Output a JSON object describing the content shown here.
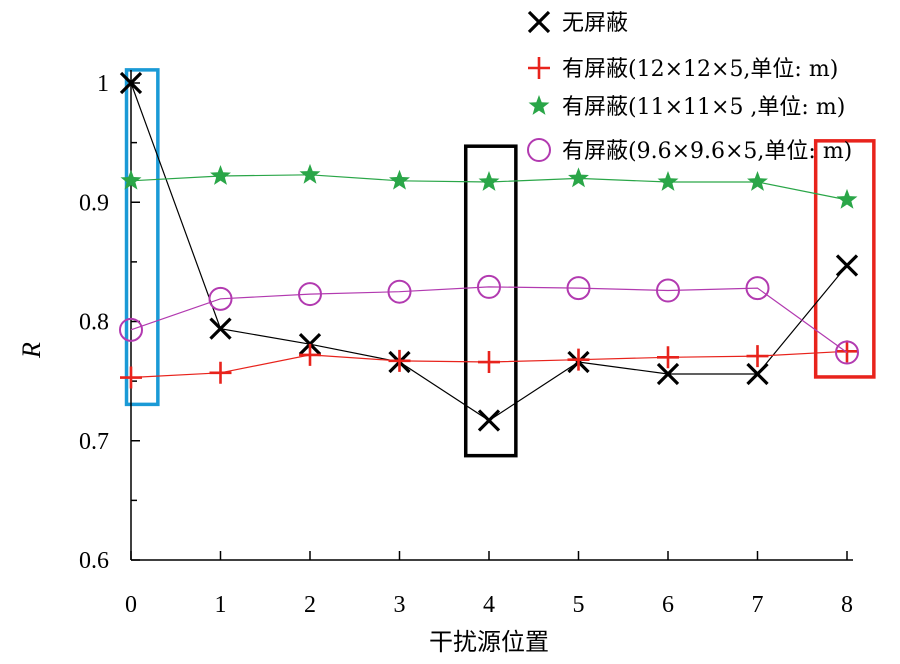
{
  "chart_data": {
    "type": "line",
    "xlabel": "干扰源位置",
    "ylabel": "R",
    "x": [
      0,
      1,
      2,
      3,
      4,
      5,
      6,
      7,
      8
    ],
    "xlim": [
      0,
      8
    ],
    "ylim": [
      0.6,
      1.0
    ],
    "x_ticks": [
      "0",
      "1",
      "2",
      "3",
      "4",
      "5",
      "6",
      "7",
      "8"
    ],
    "y_ticks": [
      "0.6",
      "0.7",
      "0.8",
      "0.9",
      "1"
    ],
    "y_tick_values": [
      0.6,
      0.7,
      0.8,
      0.9,
      1.0
    ],
    "grid": false,
    "legend_position": "top-right",
    "series": [
      {
        "name": "无屏蔽",
        "marker": "x",
        "color": "#000000",
        "values": [
          1.0,
          0.794,
          0.781,
          0.766,
          0.717,
          0.766,
          0.756,
          0.756,
          0.847
        ]
      },
      {
        "name": "有屏蔽(12×12×5,单位: m)",
        "marker": "plus",
        "color": "#e8231c",
        "values": [
          0.753,
          0.757,
          0.772,
          0.767,
          0.766,
          0.768,
          0.77,
          0.771,
          0.775
        ]
      },
      {
        "name": "有屏蔽(11×11×5 ,单位: m)",
        "marker": "star",
        "color": "#2aa648",
        "values": [
          0.918,
          0.922,
          0.923,
          0.918,
          0.917,
          0.92,
          0.917,
          0.917,
          0.902
        ]
      },
      {
        "name": "有屏蔽(9.6×9.6×5,单位: m)",
        "marker": "circle",
        "color": "#b23ab0",
        "values": [
          0.793,
          0.819,
          0.823,
          0.825,
          0.829,
          0.828,
          0.826,
          0.828,
          0.774
        ]
      }
    ],
    "highlight_boxes": [
      {
        "color": "#1a9ad6",
        "x_range": [
          -0.05,
          0.3
        ],
        "y_range": [
          0.7305,
          1.011
        ]
      },
      {
        "color": "#000000",
        "x_range": [
          3.74,
          4.3
        ],
        "y_range": [
          0.6875,
          0.947
        ]
      },
      {
        "color": "#e8231c",
        "x_range": [
          7.65,
          8.3
        ],
        "y_range": [
          0.7535,
          0.9515
        ]
      }
    ]
  }
}
